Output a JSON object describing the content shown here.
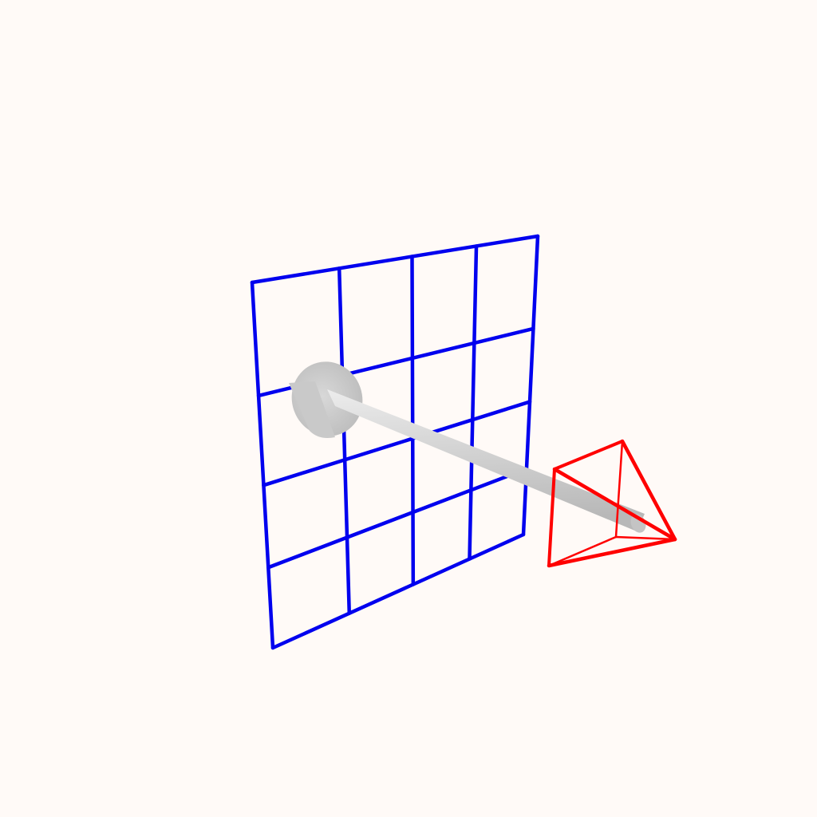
{
  "scene": {
    "background": "#fffaf7",
    "objects": [
      {
        "name": "image-plane-grid",
        "kind": "grid",
        "rows": 4,
        "cols": 4,
        "color": "#0000ee"
      },
      {
        "name": "optical-axis-rod",
        "kind": "cylinder",
        "color": "#d0d0d0"
      },
      {
        "name": "camera-frustum",
        "kind": "pyramid-wireframe",
        "color": "#ff0000"
      }
    ]
  }
}
